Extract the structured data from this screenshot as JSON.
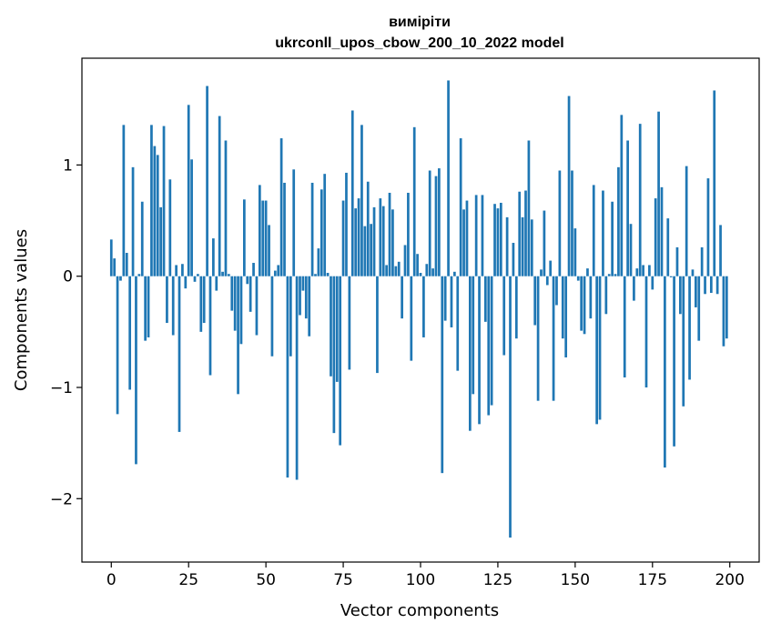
{
  "chart_data": {
    "type": "bar",
    "title_line1": "вимірiти",
    "title_line2": "ukrconll_upos_cbow_200_10_2022 model",
    "xlabel": "Vector components",
    "ylabel": "Components values",
    "xlim": [
      -9.5,
      209.5
    ],
    "ylim": [
      -2.57,
      1.96
    ],
    "xticks": [
      0,
      25,
      50,
      75,
      100,
      125,
      150,
      175,
      200
    ],
    "yticks": [
      -2,
      -1,
      0,
      1
    ],
    "ytick_labels": [
      "−2",
      "−1",
      "0",
      "1"
    ],
    "grid": false,
    "bar_color": "#1f77b4",
    "x": [
      0,
      1,
      2,
      3,
      4,
      5,
      6,
      7,
      8,
      9,
      10,
      11,
      12,
      13,
      14,
      15,
      16,
      17,
      18,
      19,
      20,
      21,
      22,
      23,
      24,
      25,
      26,
      27,
      28,
      29,
      30,
      31,
      32,
      33,
      34,
      35,
      36,
      37,
      38,
      39,
      40,
      41,
      42,
      43,
      44,
      45,
      46,
      47,
      48,
      49,
      50,
      51,
      52,
      53,
      54,
      55,
      56,
      57,
      58,
      59,
      60,
      61,
      62,
      63,
      64,
      65,
      66,
      67,
      68,
      69,
      70,
      71,
      72,
      73,
      74,
      75,
      76,
      77,
      78,
      79,
      80,
      81,
      82,
      83,
      84,
      85,
      86,
      87,
      88,
      89,
      90,
      91,
      92,
      93,
      94,
      95,
      96,
      97,
      98,
      99,
      100,
      101,
      102,
      103,
      104,
      105,
      106,
      107,
      108,
      109,
      110,
      111,
      112,
      113,
      114,
      115,
      116,
      117,
      118,
      119,
      120,
      121,
      122,
      123,
      124,
      125,
      126,
      127,
      128,
      129,
      130,
      131,
      132,
      133,
      134,
      135,
      136,
      137,
      138,
      139,
      140,
      141,
      142,
      143,
      144,
      145,
      146,
      147,
      148,
      149,
      150,
      151,
      152,
      153,
      154,
      155,
      156,
      157,
      158,
      159,
      160,
      161,
      162,
      163,
      164,
      165,
      166,
      167,
      168,
      169,
      170,
      171,
      172,
      173,
      174,
      175,
      176,
      177,
      178,
      179,
      180,
      181,
      182,
      183,
      184,
      185,
      186,
      187,
      188,
      189,
      190,
      191,
      192,
      193,
      194,
      195,
      196,
      197,
      198,
      199
    ],
    "values": [
      0.33,
      0.16,
      -1.24,
      -0.04,
      1.36,
      0.21,
      -1.02,
      0.98,
      -1.69,
      0.02,
      0.67,
      -0.58,
      -0.55,
      1.36,
      1.17,
      1.09,
      0.62,
      1.35,
      -0.42,
      0.87,
      -0.53,
      0.1,
      -1.4,
      0.11,
      -0.11,
      1.54,
      1.05,
      -0.05,
      0.02,
      -0.5,
      -0.42,
      1.71,
      -0.89,
      0.34,
      -0.13,
      1.44,
      0.04,
      1.22,
      0.02,
      -0.31,
      -0.49,
      -1.06,
      -0.61,
      0.69,
      -0.07,
      -0.32,
      0.12,
      -0.53,
      0.82,
      0.68,
      0.68,
      0.46,
      -0.72,
      0.05,
      0.1,
      1.24,
      0.84,
      -1.81,
      -0.72,
      0.96,
      -1.83,
      -0.35,
      -0.13,
      -0.38,
      -0.54,
      0.84,
      0.02,
      0.25,
      0.78,
      0.92,
      0.03,
      -0.9,
      -1.41,
      -0.95,
      -1.52,
      0.68,
      0.93,
      -0.84,
      1.49,
      0.61,
      0.7,
      1.36,
      0.45,
      0.85,
      0.47,
      0.62,
      -0.87,
      0.7,
      0.63,
      0.1,
      0.75,
      0.6,
      0.09,
      0.13,
      -0.38,
      0.28,
      0.75,
      -0.76,
      1.34,
      0.2,
      0.03,
      -0.55,
      0.11,
      0.95,
      0.07,
      0.9,
      0.97,
      -1.77,
      -0.4,
      1.76,
      -0.46,
      0.04,
      -0.85,
      1.24,
      0.6,
      0.68,
      -1.39,
      -1.06,
      0.73,
      -1.33,
      0.73,
      -0.41,
      -1.25,
      -1.16,
      0.65,
      0.61,
      0.66,
      -0.71,
      0.53,
      -2.35,
      0.3,
      -0.56,
      0.76,
      0.53,
      0.77,
      1.22,
      0.51,
      -0.44,
      -1.12,
      0.06,
      0.59,
      -0.08,
      0.14,
      -1.12,
      -0.26,
      0.95,
      -0.56,
      -0.73,
      1.62,
      0.95,
      0.43,
      -0.04,
      -0.49,
      -0.52,
      0.07,
      -0.38,
      0.82,
      -1.33,
      -1.29,
      0.77,
      -0.34,
      0.02,
      0.67,
      0.02,
      0.98,
      1.45,
      -0.91,
      1.22,
      0.47,
      -0.22,
      0.07,
      1.37,
      0.1,
      -1.0,
      0.1,
      -0.12,
      0.7,
      1.48,
      0.8,
      -1.72,
      0.52,
      -0.01,
      -1.53,
      0.26,
      -0.34,
      -1.17,
      0.99,
      -0.93,
      0.06,
      -0.28,
      -0.58,
      0.26,
      -0.16,
      0.88,
      -0.15,
      1.67,
      -0.16,
      0.46,
      -0.63,
      -0.56
    ]
  }
}
